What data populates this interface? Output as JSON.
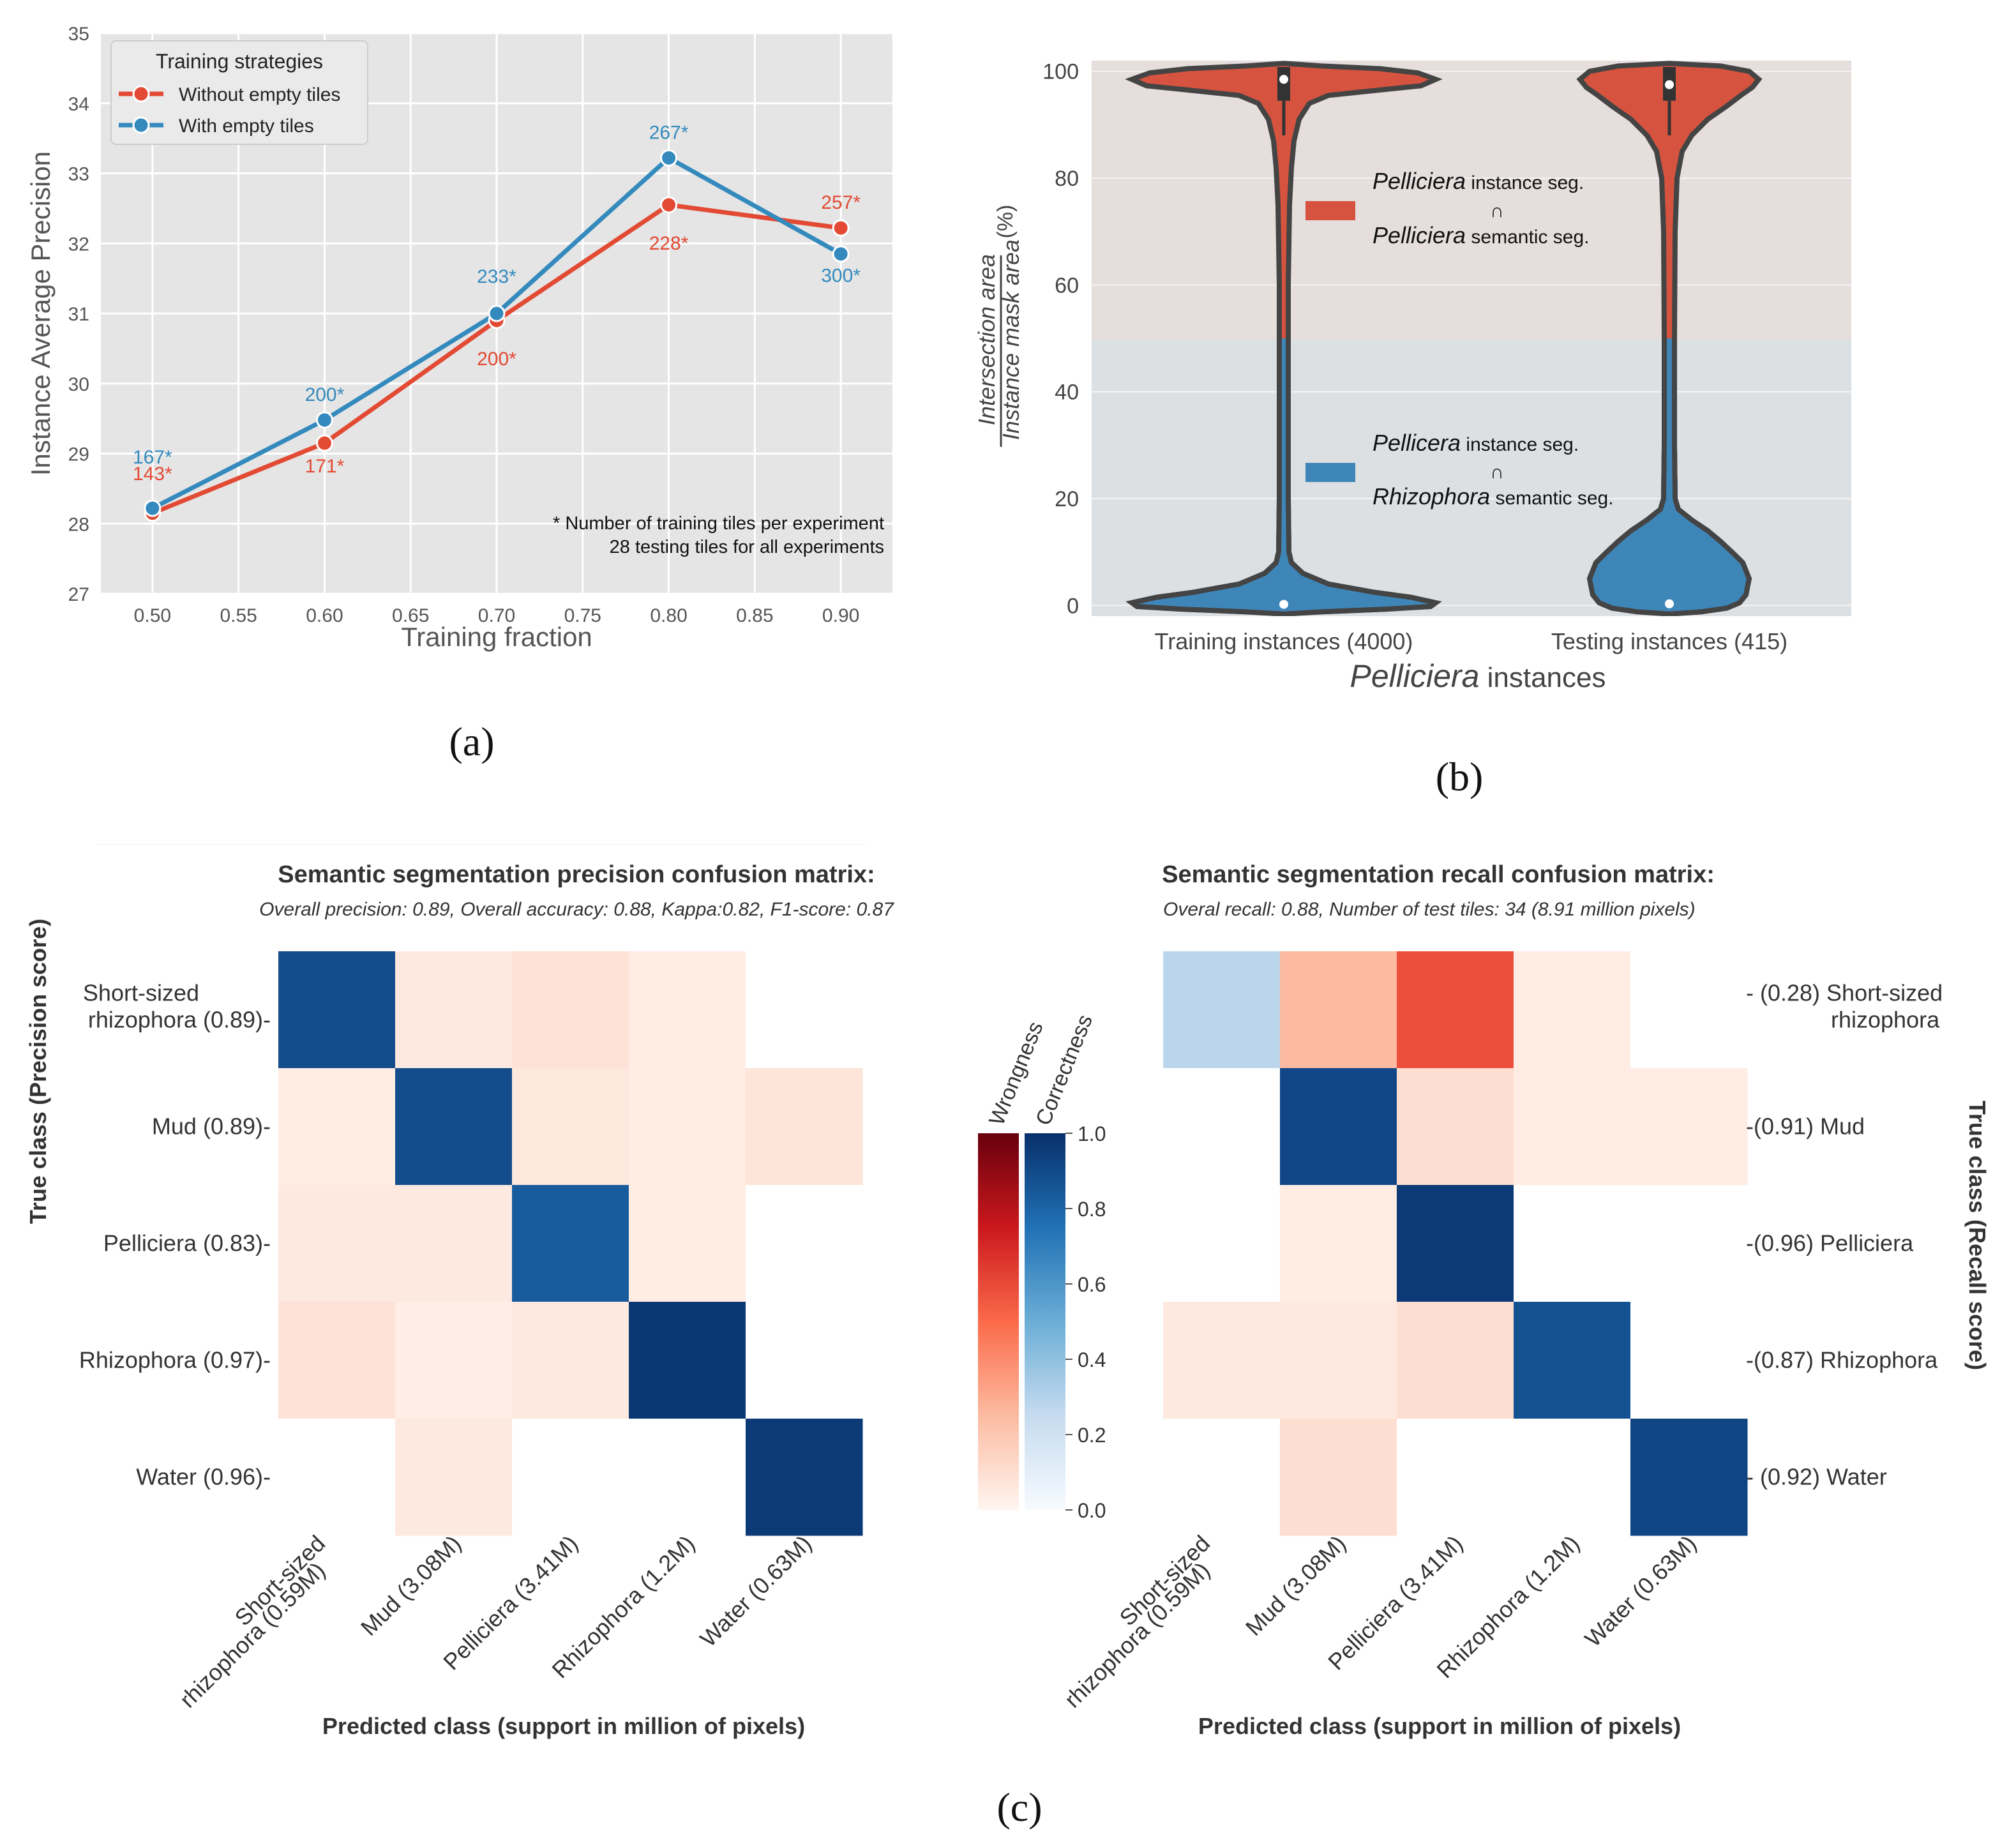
{
  "panel_labels": {
    "a": "(a)",
    "b": "(b)",
    "c": "(c)"
  },
  "colors": {
    "red": "#E24A33",
    "blue": "#348ABD",
    "grey_bg": "#E5E5E5",
    "violin_red": "#D6543F",
    "violin_blue": "#3F86B8",
    "band_top": "#E6DDDD",
    "band_bottom": "#DDE0E3",
    "violin_edge": "#444444"
  },
  "chart_data": [
    {
      "type": "line",
      "title": "",
      "xlabel": "Training fraction",
      "ylabel": "Instance Average Precision",
      "xlim": [
        0.47,
        0.93
      ],
      "ylim": [
        27,
        35
      ],
      "xticks": [
        "0.50",
        "0.55",
        "0.60",
        "0.65",
        "0.70",
        "0.75",
        "0.80",
        "0.85",
        "0.90"
      ],
      "yticks": [
        "27",
        "28",
        "29",
        "30",
        "31",
        "32",
        "33",
        "34",
        "35"
      ],
      "x": [
        0.5,
        0.6,
        0.7,
        0.8,
        0.9
      ],
      "legend": {
        "title": "Training strategies",
        "placement": "top-left"
      },
      "series": [
        {
          "name": "Without empty tiles",
          "color": "#E24A33",
          "values": [
            28.15,
            29.15,
            30.9,
            32.55,
            32.22
          ],
          "labels": [
            "143*",
            "171*",
            "200*",
            "228*",
            "257*"
          ]
        },
        {
          "name": "With empty tiles",
          "color": "#348ABD",
          "values": [
            28.22,
            29.48,
            31.0,
            33.22,
            31.85
          ],
          "labels": [
            "167*",
            "200*",
            "233*",
            "267*",
            "300*"
          ]
        }
      ],
      "annotations": [
        "* Number of training tiles per experiment",
        "28 testing tiles for all experiments"
      ]
    },
    {
      "type": "violin",
      "xlabel_italic": "Pelliciera",
      "xlabel_rest": " instances",
      "ylabel_numerator": "Intersection area",
      "ylabel_denominator": "Instance mask area",
      "ylabel_unit": "(%)",
      "ylim": [
        -2,
        102
      ],
      "yticks": [
        "0",
        "20",
        "40",
        "60",
        "80",
        "100"
      ],
      "categories": [
        "Training instances (4000)",
        "Testing instances (415)"
      ],
      "medians": {
        "top": [
          98.5,
          97.5
        ],
        "bottom": [
          0.2,
          0.3
        ]
      },
      "legend": [
        {
          "italic1": "Pelliciera",
          "rest1": " instance seg.",
          "op": "∩",
          "italic2": "Pelliciera",
          "rest2": " semantic seg.",
          "color": "#D6543F"
        },
        {
          "italic1": "Pellicera",
          "rest1": " instance seg.",
          "op": "∩",
          "italic2": "Rhizophora",
          "rest2": " semantic seg.",
          "color": "#3F86B8"
        }
      ]
    },
    {
      "type": "heatmap",
      "title": "Semantic segmentation precision confusion matrix:",
      "subtitle": "Overall precision: 0.89, Overall accuracy: 0.88, Kappa:0.82, F1-score: 0.87",
      "ylabel": "True class (Precision score)",
      "xlabel": "Predicted class (support in million of pixels)",
      "row_labels": [
        [
          "Short-sized",
          "rhizophora (0.89)-"
        ],
        [
          "Mud (0.89)-"
        ],
        [
          "Pelliciera (0.83)-"
        ],
        [
          "Rhizophora (0.97)-"
        ],
        [
          "Water (0.96)-"
        ]
      ],
      "col_labels": [
        [
          "Short-sized",
          "rhizophora (0.59M)"
        ],
        [
          "Mud (3.08M)"
        ],
        [
          "Pelliciera (3.41M)"
        ],
        [
          "Rhizophora (1.2M)"
        ],
        [
          "Water (0.63M)"
        ]
      ],
      "diagonal": [
        0.89,
        0.89,
        0.83,
        0.97,
        0.96
      ],
      "off_diagonal": [
        [
          null,
          0.05,
          0.08,
          0.04,
          0.0
        ],
        [
          0.04,
          null,
          0.06,
          0.04,
          0.07
        ],
        [
          0.05,
          0.05,
          null,
          0.04,
          0.0
        ],
        [
          0.08,
          0.03,
          0.05,
          null,
          0.0
        ],
        [
          0.0,
          0.05,
          0.0,
          0.0,
          null
        ]
      ]
    },
    {
      "type": "heatmap",
      "title": "Semantic segmentation recall confusion matrix:",
      "subtitle": "Overal recall: 0.88, Number of test tiles: 34 (8.91 million pixels)",
      "ylabel": "True class (Recall score)",
      "xlabel": "Predicted class (support in million of pixels)",
      "row_labels": [
        [
          "- (0.28) Short-sized",
          "rhizophora"
        ],
        [
          "-(0.91) Mud"
        ],
        [
          "-(0.96) Pelliciera"
        ],
        [
          "-(0.87) Rhizophora"
        ],
        [
          "- (0.92) Water"
        ]
      ],
      "col_labels": [
        [
          "Short-sized",
          "rhizophora (0.59M)"
        ],
        [
          "Mud (3.08M)"
        ],
        [
          "Pelliciera (3.41M)"
        ],
        [
          "Rhizophora (1.2M)"
        ],
        [
          "Water (0.63M)"
        ]
      ],
      "diagonal": [
        0.28,
        0.91,
        0.96,
        0.87,
        0.92
      ],
      "off_diagonal": [
        [
          null,
          0.25,
          0.58,
          0.04,
          0.0
        ],
        [
          0.0,
          null,
          0.1,
          0.04,
          0.04
        ],
        [
          0.0,
          0.04,
          null,
          0.0,
          0.0
        ],
        [
          0.05,
          0.05,
          0.1,
          null,
          0.0
        ],
        [
          0.0,
          0.1,
          0.0,
          0.0,
          null
        ]
      ],
      "colorbar": {
        "labels": [
          "Wrongness",
          "Correctness"
        ],
        "ticks": [
          "0.0",
          "0.2",
          "0.4",
          "0.6",
          "0.8",
          "1.0"
        ]
      }
    }
  ]
}
